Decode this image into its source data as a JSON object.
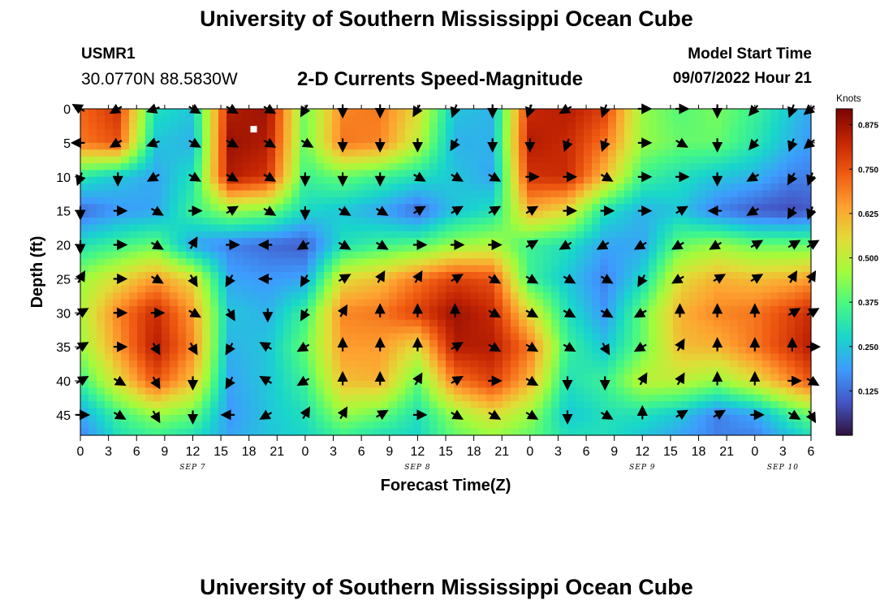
{
  "page": {
    "title": "University of Southern Mississippi Ocean Cube",
    "title_bottom": "University of Southern Mississippi Ocean Cube",
    "station_id": "USMR1",
    "coordinates": "30.0770N  88.5830W",
    "subtitle": "2-D Currents Speed-Magnitude",
    "model_start_label": "Model Start Time",
    "model_start_value": "09/07/2022 Hour 21"
  },
  "chart_data": {
    "type": "heatmap",
    "title": "2-D Currents Speed-Magnitude",
    "xlabel": "Forecast Time(Z)",
    "ylabel": "Depth (ft)",
    "x_ticks": [
      "0",
      "3",
      "6",
      "9",
      "12",
      "15",
      "18",
      "21",
      "0",
      "3",
      "6",
      "9",
      "12",
      "15",
      "18",
      "21",
      "0",
      "3",
      "6",
      "9",
      "12",
      "15",
      "18",
      "21",
      "0",
      "3",
      "6"
    ],
    "x_tick_values_hours": [
      0,
      3,
      6,
      9,
      12,
      15,
      18,
      21,
      24,
      27,
      30,
      33,
      36,
      39,
      42,
      45,
      48,
      51,
      54,
      57,
      60,
      63,
      66,
      69,
      72,
      75,
      78
    ],
    "x_range_hours": [
      0,
      78
    ],
    "date_labels": [
      {
        "label": "SEP 7",
        "hour": 12
      },
      {
        "label": "SEP 8",
        "hour": 36
      },
      {
        "label": "SEP 9",
        "hour": 60
      },
      {
        "label": "SEP 10",
        "hour": 75
      }
    ],
    "y_ticks": [
      "0",
      "5",
      "10",
      "15",
      "20",
      "25",
      "30",
      "35",
      "40",
      "45"
    ],
    "y_tick_values": [
      0,
      5,
      10,
      15,
      20,
      25,
      30,
      35,
      40,
      45
    ],
    "y_range_ft": [
      0,
      48
    ],
    "colorbar": {
      "label": "Knots",
      "ticks": [
        "0.875",
        "0.750",
        "0.625",
        "0.500",
        "0.375",
        "0.250",
        "0.125"
      ],
      "tick_values": [
        0.875,
        0.75,
        0.625,
        0.5,
        0.375,
        0.25,
        0.125
      ],
      "range": [
        0,
        0.92
      ],
      "stops": [
        "#30123b",
        "#4455c4",
        "#3e9bfe",
        "#18d6cb",
        "#46f884",
        "#a2fc3c",
        "#e1dd37",
        "#fea130",
        "#f05b12",
        "#c42503",
        "#7a0403"
      ]
    },
    "speed_grid": {
      "x_hours": [
        0,
        4,
        8,
        12,
        16,
        20,
        24,
        28,
        32,
        36,
        40,
        44,
        48,
        52,
        56,
        60,
        64,
        68,
        72,
        76,
        78
      ],
      "y_depth_ft": [
        0,
        5,
        10,
        15,
        20,
        25,
        30,
        35,
        40,
        45,
        48
      ],
      "values_knots": [
        [
          0.72,
          0.8,
          0.3,
          0.25,
          0.85,
          0.88,
          0.4,
          0.68,
          0.7,
          0.55,
          0.25,
          0.22,
          0.82,
          0.85,
          0.78,
          0.45,
          0.38,
          0.42,
          0.35,
          0.25,
          0.2
        ],
        [
          0.7,
          0.75,
          0.25,
          0.22,
          0.88,
          0.85,
          0.4,
          0.7,
          0.68,
          0.5,
          0.22,
          0.22,
          0.85,
          0.82,
          0.7,
          0.45,
          0.4,
          0.4,
          0.32,
          0.22,
          0.18
        ],
        [
          0.32,
          0.25,
          0.2,
          0.3,
          0.85,
          0.8,
          0.35,
          0.4,
          0.35,
          0.3,
          0.25,
          0.2,
          0.8,
          0.82,
          0.6,
          0.35,
          0.3,
          0.25,
          0.22,
          0.15,
          0.15
        ],
        [
          0.12,
          0.18,
          0.2,
          0.35,
          0.45,
          0.42,
          0.28,
          0.25,
          0.2,
          0.12,
          0.25,
          0.3,
          0.62,
          0.55,
          0.3,
          0.22,
          0.25,
          0.15,
          0.1,
          0.08,
          0.1
        ],
        [
          0.3,
          0.35,
          0.4,
          0.2,
          0.15,
          0.12,
          0.1,
          0.3,
          0.35,
          0.38,
          0.45,
          0.48,
          0.35,
          0.3,
          0.2,
          0.2,
          0.4,
          0.45,
          0.4,
          0.4,
          0.4
        ],
        [
          0.45,
          0.55,
          0.65,
          0.55,
          0.2,
          0.18,
          0.2,
          0.55,
          0.6,
          0.7,
          0.78,
          0.75,
          0.35,
          0.25,
          0.15,
          0.28,
          0.55,
          0.62,
          0.6,
          0.62,
          0.65
        ],
        [
          0.48,
          0.68,
          0.82,
          0.65,
          0.25,
          0.22,
          0.35,
          0.68,
          0.7,
          0.78,
          0.88,
          0.82,
          0.55,
          0.3,
          0.18,
          0.4,
          0.62,
          0.68,
          0.7,
          0.78,
          0.82
        ],
        [
          0.45,
          0.65,
          0.85,
          0.68,
          0.22,
          0.25,
          0.4,
          0.65,
          0.65,
          0.55,
          0.85,
          0.85,
          0.7,
          0.35,
          0.25,
          0.4,
          0.6,
          0.62,
          0.7,
          0.8,
          0.85
        ],
        [
          0.35,
          0.55,
          0.75,
          0.6,
          0.2,
          0.25,
          0.35,
          0.6,
          0.62,
          0.4,
          0.7,
          0.78,
          0.62,
          0.3,
          0.35,
          0.5,
          0.5,
          0.45,
          0.55,
          0.68,
          0.75
        ],
        [
          0.2,
          0.35,
          0.45,
          0.4,
          0.18,
          0.25,
          0.3,
          0.45,
          0.4,
          0.3,
          0.45,
          0.55,
          0.45,
          0.25,
          0.3,
          0.3,
          0.25,
          0.15,
          0.2,
          0.35,
          0.4
        ],
        [
          0.15,
          0.3,
          0.35,
          0.3,
          0.2,
          0.25,
          0.28,
          0.35,
          0.3,
          0.28,
          0.4,
          0.45,
          0.4,
          0.3,
          0.3,
          0.25,
          0.2,
          0.15,
          0.15,
          0.25,
          0.3
        ]
      ]
    },
    "vector_field": {
      "x_hours": [
        0,
        4,
        8,
        12,
        16,
        20,
        24,
        28,
        32,
        36,
        40,
        44,
        48,
        52,
        56,
        60,
        64,
        68,
        72,
        76,
        78
      ],
      "y_depth_ft": [
        0,
        5,
        10,
        15,
        20,
        25,
        30,
        35,
        40,
        45
      ],
      "direction_deg": [
        [
          300,
          240,
          250,
          120,
          120,
          120,
          210,
          180,
          180,
          210,
          200,
          180,
          200,
          240,
          200,
          90,
          90,
          180,
          220,
          200,
          230
        ],
        [
          270,
          240,
          250,
          120,
          120,
          120,
          120,
          180,
          180,
          180,
          210,
          180,
          180,
          200,
          200,
          90,
          120,
          180,
          220,
          200,
          230
        ],
        [
          200,
          180,
          240,
          120,
          120,
          120,
          180,
          180,
          180,
          120,
          120,
          120,
          90,
          90,
          120,
          90,
          90,
          180,
          240,
          210,
          200
        ],
        [
          180,
          90,
          120,
          90,
          60,
          120,
          180,
          120,
          120,
          60,
          60,
          60,
          60,
          90,
          90,
          90,
          60,
          270,
          240,
          210,
          200
        ],
        [
          180,
          90,
          120,
          30,
          90,
          270,
          240,
          120,
          120,
          90,
          90,
          90,
          60,
          240,
          240,
          240,
          240,
          240,
          60,
          60,
          60
        ],
        [
          30,
          90,
          120,
          150,
          210,
          270,
          210,
          60,
          30,
          30,
          60,
          120,
          120,
          120,
          120,
          210,
          240,
          60,
          60,
          30,
          30
        ],
        [
          60,
          90,
          90,
          120,
          150,
          180,
          210,
          30,
          0,
          0,
          0,
          120,
          120,
          120,
          120,
          240,
          0,
          0,
          0,
          60,
          60
        ],
        [
          60,
          90,
          150,
          150,
          210,
          300,
          240,
          0,
          0,
          0,
          60,
          120,
          120,
          120,
          150,
          240,
          30,
          0,
          0,
          0,
          90
        ],
        [
          60,
          120,
          150,
          180,
          210,
          300,
          240,
          0,
          0,
          30,
          60,
          90,
          120,
          180,
          180,
          30,
          30,
          0,
          0,
          90,
          120
        ],
        [
          90,
          120,
          150,
          180,
          270,
          240,
          30,
          30,
          60,
          90,
          120,
          120,
          120,
          180,
          120,
          0,
          60,
          60,
          90,
          120,
          150
        ]
      ]
    },
    "marker": {
      "hour": 18.5,
      "depth_ft": 3
    }
  }
}
